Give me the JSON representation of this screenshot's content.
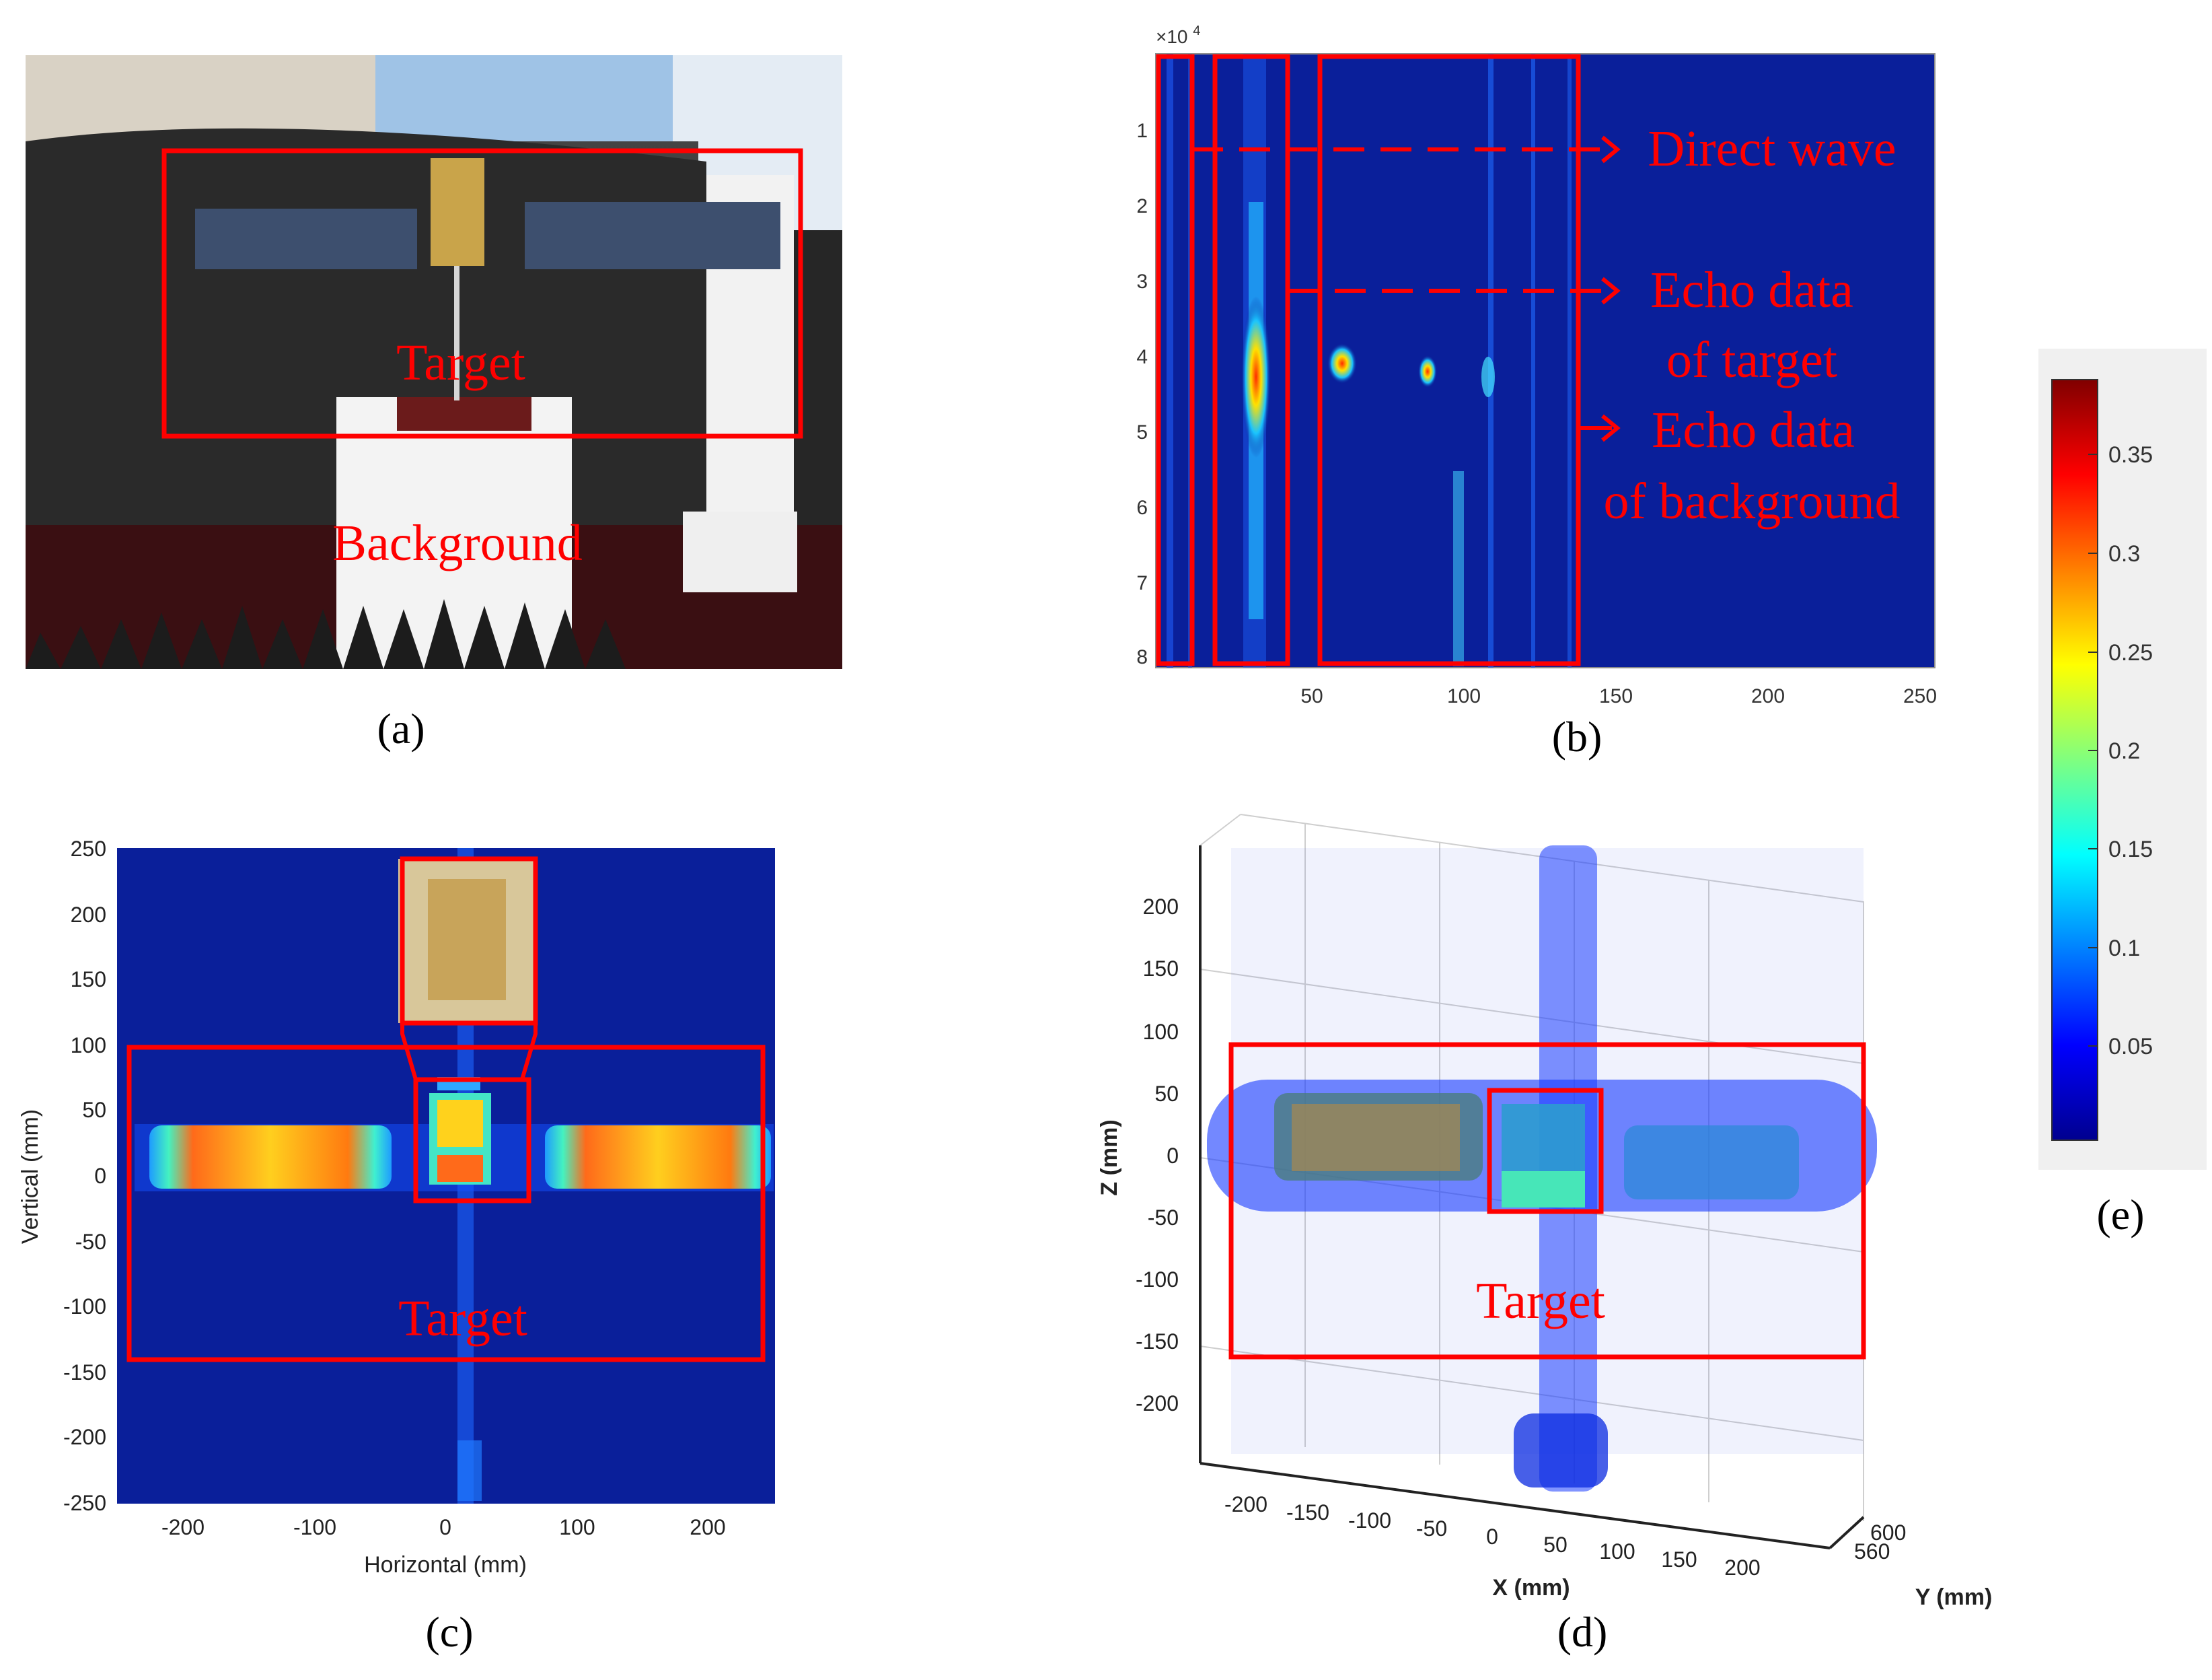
{
  "panel_labels": {
    "a": "(a)",
    "b": "(b)",
    "c": "(c)",
    "d": "(d)",
    "e": "(e)"
  },
  "panel_a": {
    "target_label": "Target",
    "background_label": "Background"
  },
  "panel_b": {
    "exponent_label": "×10",
    "exponent_power": "4",
    "annotations": {
      "direct_wave": "Direct wave",
      "echo_target_line1": "Echo data",
      "echo_target_line2": "of target",
      "echo_background_line1": "Echo data",
      "echo_background_line2": "of background"
    },
    "y_ticks": [
      "1",
      "2",
      "3",
      "4",
      "5",
      "6",
      "7",
      "8"
    ],
    "x_ticks": [
      "50",
      "100",
      "150",
      "200",
      "250"
    ]
  },
  "panel_c": {
    "xlabel": "Horizontal (mm)",
    "ylabel": "Vertical (mm)",
    "target_label": "Target",
    "x_ticks": [
      "-200",
      "-100",
      "0",
      "100",
      "200"
    ],
    "y_ticks": [
      "250",
      "200",
      "150",
      "100",
      "50",
      "0",
      "-50",
      "-100",
      "-150",
      "-200",
      "-250"
    ]
  },
  "panel_d": {
    "xlabel": "X (mm)",
    "ylabel": "Y (mm)",
    "zlabel": "Z (mm)",
    "target_label": "Target",
    "x_ticks": [
      "-200",
      "-150",
      "-100",
      "-50",
      "0",
      "50",
      "100",
      "150",
      "200"
    ],
    "y_ticks": [
      "600",
      "560"
    ],
    "z_ticks": [
      "200",
      "150",
      "100",
      "50",
      "0",
      "-50",
      "-100",
      "-150",
      "-200"
    ]
  },
  "colorbar": {
    "ticks": [
      "0.35",
      "0.3",
      "0.25",
      "0.2",
      "0.15",
      "0.1",
      "0.05"
    ]
  },
  "colors": {
    "annotation_red": "#ff0000",
    "plot_background": "#0a1f9a",
    "dark_blue": "#00008f",
    "colormap": "jet"
  }
}
